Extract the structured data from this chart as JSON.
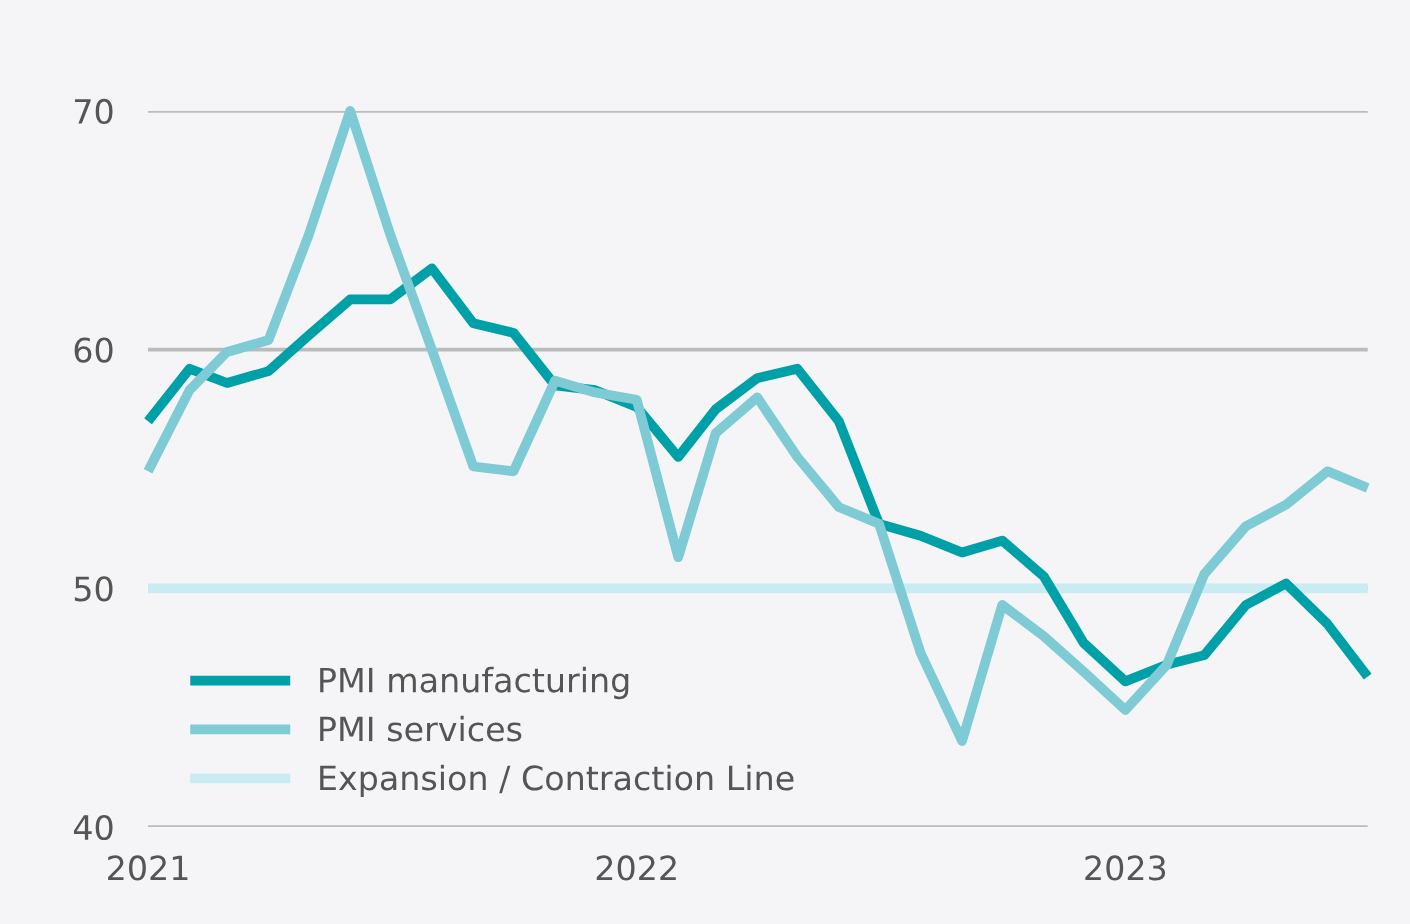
{
  "chart_data": {
    "type": "line",
    "x": [
      "2021-01",
      "2021-02",
      "2021-03",
      "2021-04",
      "2021-05",
      "2021-06",
      "2021-07",
      "2021-08",
      "2021-09",
      "2021-10",
      "2021-11",
      "2021-12",
      "2022-01",
      "2022-02",
      "2022-03",
      "2022-04",
      "2022-05",
      "2022-06",
      "2022-07",
      "2022-08",
      "2022-09",
      "2022-10",
      "2022-11",
      "2022-12",
      "2023-01",
      "2023-02",
      "2023-03",
      "2023-04",
      "2023-05",
      "2023-06",
      "2023-07"
    ],
    "series": [
      {
        "name": "PMI manufacturing",
        "color": "#00a0a8",
        "values": [
          57.0,
          59.2,
          58.6,
          59.1,
          60.6,
          62.1,
          62.1,
          63.4,
          61.1,
          60.7,
          58.5,
          58.3,
          57.6,
          55.5,
          57.5,
          58.8,
          59.2,
          57.0,
          52.7,
          52.2,
          51.5,
          52.0,
          50.5,
          47.7,
          46.1,
          46.8,
          47.2,
          49.3,
          50.2,
          48.5,
          46.3
        ]
      },
      {
        "name": "PMI services",
        "color": "#7ecbd6",
        "values": [
          54.9,
          58.3,
          59.9,
          60.4,
          64.8,
          70.0,
          64.8,
          60.0,
          55.1,
          54.9,
          58.7,
          58.2,
          57.9,
          51.3,
          56.5,
          58.0,
          55.5,
          53.4,
          52.7,
          47.3,
          43.6,
          49.3,
          48.0,
          46.5,
          44.9,
          46.8,
          50.6,
          52.6,
          53.5,
          54.9,
          54.2
        ]
      },
      {
        "name": "Expansion / Contraction Line",
        "color": "#c9ebf2",
        "values": [
          50,
          50,
          50,
          50,
          50,
          50,
          50,
          50,
          50,
          50,
          50,
          50,
          50,
          50,
          50,
          50,
          50,
          50,
          50,
          50,
          50,
          50,
          50,
          50,
          50,
          50,
          50,
          50,
          50,
          50,
          50
        ]
      }
    ],
    "xlim": [
      "2021-01",
      "2023-07"
    ],
    "xticks": [
      {
        "value": "2021-01",
        "label": "2021"
      },
      {
        "value": "2022-01",
        "label": "2022"
      },
      {
        "value": "2023-01",
        "label": "2023"
      }
    ],
    "ylim": [
      40,
      70
    ],
    "yticks": [
      40,
      50,
      60,
      70
    ],
    "grid": "y",
    "legend": "bottom left",
    "marker": "none",
    "line_style": "solid"
  }
}
